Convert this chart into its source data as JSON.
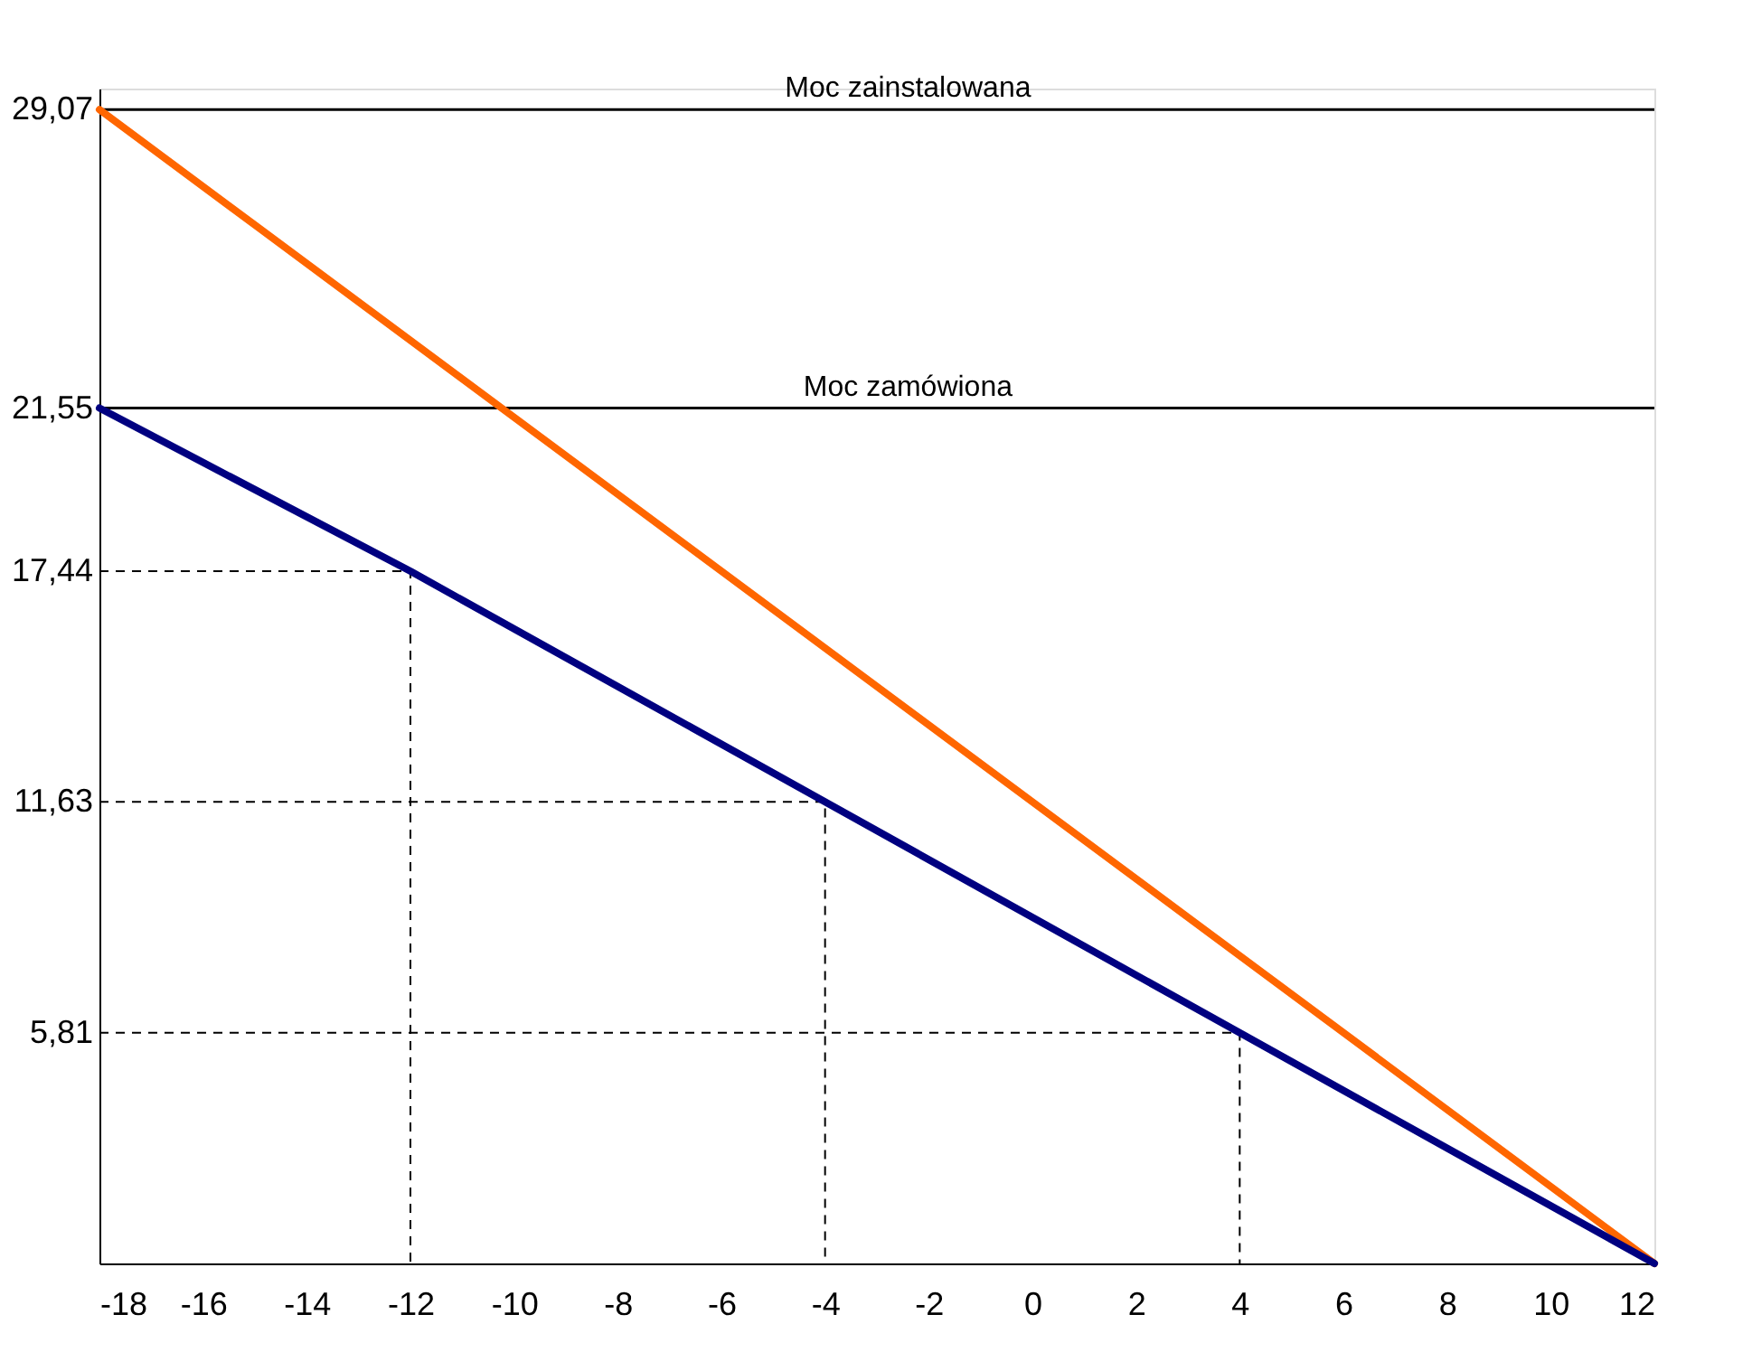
{
  "chart_data": {
    "type": "line",
    "series": [
      {
        "color": "#ff6600",
        "x": [
          -18,
          12
        ],
        "values": [
          29.07,
          0
        ]
      },
      {
        "color": "#000080",
        "x": [
          -18,
          -12,
          -4,
          4,
          12
        ],
        "values": [
          21.55,
          17.44,
          11.63,
          5.81,
          0
        ]
      },
      {
        "color": "#000000",
        "line_style": "dashed",
        "x": [
          -18,
          -12,
          -12
        ],
        "values": [
          17.44,
          17.44,
          0
        ]
      },
      {
        "color": "#000000",
        "line_style": "dashed",
        "x": [
          -18,
          -4,
          -4
        ],
        "values": [
          11.63,
          11.63,
          0
        ]
      },
      {
        "color": "#000000",
        "line_style": "dashed",
        "x": [
          -18,
          4,
          4
        ],
        "values": [
          5.81,
          5.81,
          0
        ]
      }
    ],
    "xlim": [
      -18,
      12
    ],
    "xticks": [
      -18,
      -16,
      -14,
      -12,
      -10,
      -8,
      -6,
      -4,
      -2,
      0,
      2,
      4,
      6,
      8,
      10,
      12
    ],
    "ylim": [
      0,
      29.6
    ],
    "yticks": [
      {
        "value": 5.81,
        "label": "5,81"
      },
      {
        "value": 11.63,
        "label": "11,63"
      },
      {
        "value": 17.44,
        "label": "17,44"
      },
      {
        "value": 21.55,
        "label": "21,55"
      },
      {
        "value": 29.07,
        "label": "29,07"
      }
    ],
    "ref_lines": [
      {
        "axis": "y",
        "value": 29.07,
        "label": "Moc zainstalowana",
        "color": "#000000"
      },
      {
        "axis": "y",
        "value": 21.55,
        "label": "Moc zamówiona",
        "color": "#000000"
      }
    ],
    "grid": false,
    "marker": "none",
    "line_style": "solid"
  }
}
